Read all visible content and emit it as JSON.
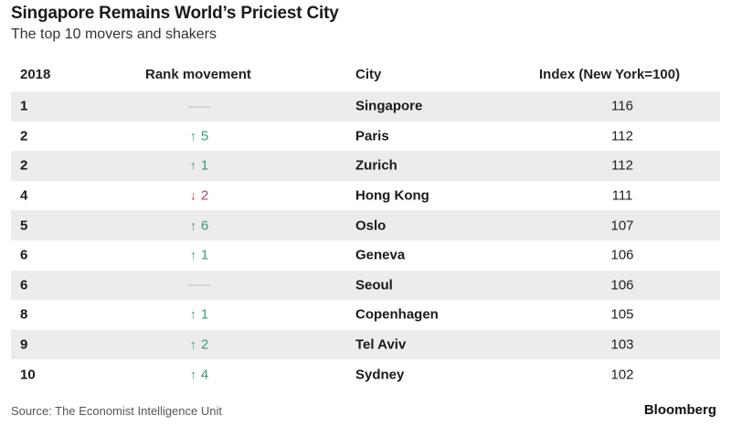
{
  "header": {
    "title": "Singapore Remains World’s Priciest City",
    "subtitle": "The top 10 movers and shakers"
  },
  "columns": [
    "2018",
    "Rank movement",
    "City",
    "Index (New York=100)"
  ],
  "footer": {
    "source": "Source: The Economist Intelligence Unit",
    "brand": "Bloomberg"
  },
  "colors": {
    "up": "#3d9a7e",
    "down": "#b34a56",
    "row_shade": "#ececec"
  },
  "chart_data": {
    "type": "table",
    "title": "Singapore Remains World’s Priciest City",
    "subtitle": "The top 10 movers and shakers",
    "columns": [
      "2018",
      "Rank movement",
      "City",
      "Index (New York=100)"
    ],
    "rows": [
      {
        "rank": "1",
        "movement": "none",
        "change": "",
        "city": "Singapore",
        "index": "116"
      },
      {
        "rank": "2",
        "movement": "up",
        "change": "5",
        "city": "Paris",
        "index": "112"
      },
      {
        "rank": "2",
        "movement": "up",
        "change": "1",
        "city": "Zurich",
        "index": "112"
      },
      {
        "rank": "4",
        "movement": "down",
        "change": "2",
        "city": "Hong Kong",
        "index": "111"
      },
      {
        "rank": "5",
        "movement": "up",
        "change": "6",
        "city": "Oslo",
        "index": "107"
      },
      {
        "rank": "6",
        "movement": "up",
        "change": "1",
        "city": "Geneva",
        "index": "106"
      },
      {
        "rank": "6",
        "movement": "none",
        "change": "",
        "city": "Seoul",
        "index": "106"
      },
      {
        "rank": "8",
        "movement": "up",
        "change": "1",
        "city": "Copenhagen",
        "index": "105"
      },
      {
        "rank": "9",
        "movement": "up",
        "change": "2",
        "city": "Tel Aviv",
        "index": "103"
      },
      {
        "rank": "10",
        "movement": "up",
        "change": "4",
        "city": "Sydney",
        "index": "102"
      }
    ]
  }
}
